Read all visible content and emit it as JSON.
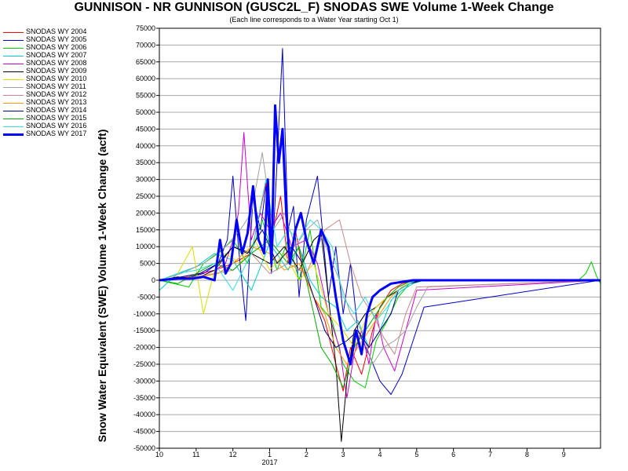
{
  "chart_data": {
    "type": "line",
    "title": "GUNNISON - NR GUNNISON (GUSC2L_F) SNODAS SWE Volume 1-Week Change",
    "subtitle": "(Each line corresponds to a Water Year starting Oct 1)",
    "ylabel": "Snow Water Equivalent (SWE) Volume 1-Week Change (acft)",
    "xlabel": "",
    "x_unit": "months since Oct 1",
    "xlim": [
      0,
      12
    ],
    "ylim": [
      -50000,
      75000
    ],
    "y_ticks": [
      75000,
      70000,
      65000,
      60000,
      55000,
      50000,
      45000,
      40000,
      35000,
      30000,
      25000,
      20000,
      15000,
      10000,
      5000,
      0,
      -5000,
      -10000,
      -15000,
      -20000,
      -25000,
      -30000,
      -35000,
      -40000,
      -45000,
      -50000
    ],
    "x_tick_labels": [
      "10",
      "11",
      "12",
      "1",
      "2",
      "3",
      "4",
      "5",
      "6",
      "7",
      "8",
      "9"
    ],
    "x_year_label": "2017",
    "grid": true,
    "legend_position": "left",
    "series": [
      {
        "name": "SNODAS WY 2004",
        "color": "#ff0000",
        "width": 1,
        "x": [
          0,
          0.8,
          1.5,
          2.0,
          2.5,
          2.9,
          3.1,
          3.3,
          3.5,
          3.7,
          3.9,
          4.2,
          4.5,
          4.8,
          5.0,
          5.2,
          5.5,
          5.8,
          6.0,
          6.3,
          6.6,
          7.0,
          9.5,
          12.0
        ],
        "y": [
          0,
          1000,
          3000,
          5000,
          8000,
          29000,
          15000,
          25000,
          5000,
          15000,
          3000,
          -5000,
          -12000,
          -25000,
          -33000,
          -20000,
          -28000,
          -15000,
          -8000,
          -3000,
          -1000,
          0,
          0,
          0
        ]
      },
      {
        "name": "SNODAS WY 2005",
        "color": "#0000cc",
        "width": 1,
        "x": [
          0,
          0.7,
          1.2,
          1.6,
          1.85,
          2.0,
          2.15,
          2.35,
          2.55,
          2.75,
          2.9,
          3.05,
          3.2,
          3.35,
          3.5,
          3.65,
          3.8,
          4.0,
          4.3,
          4.6,
          4.8,
          5.0,
          5.2,
          5.4,
          5.7,
          6.0,
          6.3,
          6.6,
          6.9,
          7.2,
          12.0
        ],
        "y": [
          0,
          500,
          2000,
          5000,
          12000,
          31000,
          10000,
          -12000,
          25000,
          15000,
          28000,
          2000,
          35000,
          69000,
          15000,
          22000,
          -5000,
          18000,
          31000,
          -5000,
          10000,
          -10000,
          5000,
          -15000,
          -22000,
          -30000,
          -34000,
          -28000,
          -18000,
          -8000,
          0
        ]
      },
      {
        "name": "SNODAS WY 2006",
        "color": "#00cc00",
        "width": 1,
        "x": [
          0,
          0.8,
          1.2,
          1.6,
          2.0,
          2.4,
          2.8,
          3.2,
          3.5,
          3.8,
          4.1,
          4.4,
          4.7,
          5.0,
          5.3,
          5.6,
          5.9,
          6.2,
          6.5,
          6.8,
          7.1,
          11.4,
          11.6,
          11.75,
          11.9,
          12.0
        ],
        "y": [
          0,
          -2000,
          5000,
          8000,
          12000,
          5000,
          18000,
          3000,
          12000,
          0,
          15000,
          -8000,
          -12000,
          -25000,
          -30000,
          -32000,
          -18000,
          -12000,
          -5000,
          -1000,
          0,
          0,
          2000,
          5500,
          1000,
          -1000
        ]
      },
      {
        "name": "SNODAS WY 2007",
        "color": "#00cccc",
        "width": 1,
        "x": [
          0,
          0.5,
          1.0,
          1.5,
          2.0,
          2.5,
          3.0,
          3.5,
          3.8,
          4.1,
          4.4,
          4.8,
          5.1,
          5.4,
          5.7,
          6.0,
          6.3,
          6.6,
          6.9,
          7.2,
          12.0
        ],
        "y": [
          -3000,
          2000,
          4000,
          8000,
          6000,
          -3000,
          11000,
          3000,
          10000,
          0,
          -5000,
          -8000,
          -15000,
          -12000,
          -20000,
          -15000,
          -6000,
          -3000,
          -1000,
          0,
          0
        ]
      },
      {
        "name": "SNODAS WY 2008",
        "color": "#cc00cc",
        "width": 1,
        "x": [
          0,
          0.6,
          1.1,
          1.5,
          1.8,
          2.0,
          2.15,
          2.3,
          2.5,
          2.75,
          3.0,
          3.3,
          3.6,
          4.0,
          4.3,
          4.6,
          4.9,
          5.1,
          5.3,
          5.5,
          5.7,
          5.9,
          6.1,
          6.4,
          6.7,
          7.0,
          12.0
        ],
        "y": [
          0,
          1000,
          2000,
          3000,
          5000,
          12000,
          20000,
          44000,
          12000,
          20000,
          15000,
          20000,
          10000,
          12000,
          5000,
          -10000,
          -20000,
          -35000,
          -22000,
          -15000,
          -25000,
          -10000,
          -20000,
          -27000,
          -15000,
          -3000,
          0
        ]
      },
      {
        "name": "SNODAS WY 2009",
        "color": "#000000",
        "width": 1,
        "x": [
          0,
          0.5,
          1.0,
          1.5,
          2.0,
          2.5,
          3.0,
          3.4,
          3.8,
          4.2,
          4.4,
          4.6,
          4.8,
          4.95,
          5.1,
          5.3,
          5.6,
          5.9,
          6.2,
          6.5,
          6.8,
          7.2,
          12.0
        ],
        "y": [
          0,
          1000,
          500,
          3000,
          10000,
          8000,
          5000,
          10000,
          3000,
          12000,
          14000,
          -5000,
          -25000,
          -48000,
          -30000,
          -15000,
          -10000,
          -8000,
          -5000,
          -3000,
          -1000,
          0,
          0
        ]
      },
      {
        "name": "SNODAS WY 2010",
        "color": "#dddd00",
        "width": 1,
        "x": [
          0,
          0.5,
          0.9,
          1.2,
          1.5,
          1.8,
          2.2,
          2.6,
          3.0,
          3.4,
          3.8,
          4.2,
          4.6,
          5.0,
          5.3,
          5.6,
          5.9,
          6.2,
          6.5,
          6.8,
          7.1,
          12.0
        ],
        "y": [
          0,
          2000,
          10000,
          -10000,
          3000,
          8000,
          5000,
          12000,
          3000,
          8000,
          0,
          5000,
          -10000,
          -15000,
          -20000,
          -12000,
          -8000,
          -5000,
          -2000,
          -500,
          0,
          0
        ]
      },
      {
        "name": "SNODAS WY 2011",
        "color": "#a0a0a0",
        "width": 1,
        "x": [
          0,
          0.6,
          1.2,
          1.8,
          2.2,
          2.5,
          2.8,
          3.1,
          3.4,
          3.7,
          4.0,
          4.3,
          4.6,
          4.9,
          5.2,
          5.5,
          5.8,
          6.1,
          6.4,
          6.7,
          7.0,
          7.3,
          12.0
        ],
        "y": [
          0,
          2000,
          5000,
          10000,
          15000,
          20000,
          38000,
          15000,
          20000,
          10000,
          15000,
          18000,
          8000,
          0,
          -10000,
          -15000,
          -25000,
          -20000,
          -18000,
          -15000,
          -8000,
          -2000,
          0
        ]
      },
      {
        "name": "SNODAS WY 2012",
        "color": "#cc8888",
        "width": 1,
        "x": [
          0,
          0.5,
          1.0,
          1.5,
          2.0,
          2.5,
          3.0,
          3.5,
          4.0,
          4.5,
          4.9,
          5.2,
          5.5,
          5.8,
          6.1,
          6.4,
          6.7,
          7.0,
          12.0
        ],
        "y": [
          0,
          500,
          1000,
          2000,
          3000,
          8000,
          2000,
          5000,
          2000,
          15000,
          18000,
          5000,
          -5000,
          -10000,
          -17000,
          -22000,
          -10000,
          -2000,
          0
        ]
      },
      {
        "name": "SNODAS WY 2013",
        "color": "#ff9900",
        "width": 1,
        "x": [
          0,
          0.6,
          1.1,
          1.6,
          2.0,
          2.5,
          3.0,
          3.4,
          3.8,
          4.2,
          4.5,
          4.8,
          5.1,
          5.4,
          5.7,
          6.0,
          6.3,
          6.6,
          6.9,
          7.2,
          12.0
        ],
        "y": [
          0,
          500,
          1000,
          2000,
          5000,
          10000,
          8000,
          3000,
          5000,
          -5000,
          -10000,
          -20000,
          -25000,
          -20000,
          -15000,
          -10000,
          -5000,
          -2000,
          -500,
          0,
          0
        ]
      },
      {
        "name": "SNODAS WY 2014",
        "color": "#000080",
        "width": 1,
        "x": [
          0,
          0.6,
          1.1,
          1.6,
          2.0,
          2.4,
          2.8,
          3.2,
          3.6,
          3.9,
          4.2,
          4.5,
          4.8,
          5.1,
          5.4,
          5.7,
          6.0,
          6.3,
          6.5,
          6.8,
          7.1,
          12.0
        ],
        "y": [
          0,
          1000,
          2000,
          5000,
          10000,
          8000,
          15000,
          5000,
          10000,
          5000,
          -5000,
          -15000,
          -20000,
          -18000,
          -15000,
          -20000,
          -15000,
          -10000,
          -3000,
          -1000,
          0,
          0
        ]
      },
      {
        "name": "SNODAS WY 2015",
        "color": "#00aa00",
        "width": 1,
        "x": [
          0,
          0.5,
          1.0,
          1.5,
          2.0,
          2.5,
          3.0,
          3.5,
          3.8,
          4.1,
          4.4,
          4.7,
          5.0,
          5.3,
          5.6,
          5.9,
          6.2,
          6.5,
          6.8,
          7.1,
          12.0
        ],
        "y": [
          0,
          -1000,
          2000,
          5000,
          3000,
          8000,
          12000,
          5000,
          10000,
          -5000,
          -20000,
          -25000,
          -32000,
          -20000,
          -15000,
          -10000,
          -5000,
          -2000,
          -500,
          0,
          0
        ]
      },
      {
        "name": "SNODAS WY 2016",
        "color": "#33dddd",
        "width": 1,
        "x": [
          0,
          0.5,
          1.0,
          1.5,
          2.0,
          2.5,
          2.9,
          3.2,
          3.5,
          3.8,
          4.1,
          4.4,
          4.7,
          5.0,
          5.3,
          5.6,
          5.9,
          6.2,
          6.5,
          6.8,
          7.0,
          12.0
        ],
        "y": [
          0,
          2000,
          3000,
          5000,
          -3000,
          8000,
          30000,
          10000,
          15000,
          12000,
          18000,
          15000,
          10000,
          -5000,
          -10000,
          -5000,
          -12000,
          -8000,
          -3000,
          -1000,
          0,
          0
        ]
      },
      {
        "name": "SNODAS WY 2017",
        "color": "#0000ff",
        "width": 3,
        "x": [
          0,
          0.5,
          0.9,
          1.2,
          1.5,
          1.65,
          1.8,
          1.95,
          2.1,
          2.25,
          2.4,
          2.55,
          2.7,
          2.85,
          2.95,
          3.05,
          3.15,
          3.25,
          3.35,
          3.45,
          3.55,
          3.7,
          3.85,
          4.0,
          4.2,
          4.4,
          4.6,
          4.8,
          5.0,
          5.2,
          5.35,
          5.5,
          5.65,
          5.8,
          6.0,
          6.3,
          6.6,
          6.9,
          12.0
        ],
        "y": [
          0,
          500,
          500,
          1000,
          0,
          12000,
          2000,
          5000,
          18000,
          8000,
          14000,
          28000,
          12000,
          8000,
          30000,
          5000,
          52000,
          35000,
          45000,
          20000,
          5000,
          15000,
          20000,
          12000,
          5000,
          15000,
          10000,
          -5000,
          -18000,
          -25000,
          -15000,
          -22000,
          -10000,
          -5000,
          -3000,
          -1000,
          -500,
          0,
          0
        ]
      }
    ]
  }
}
